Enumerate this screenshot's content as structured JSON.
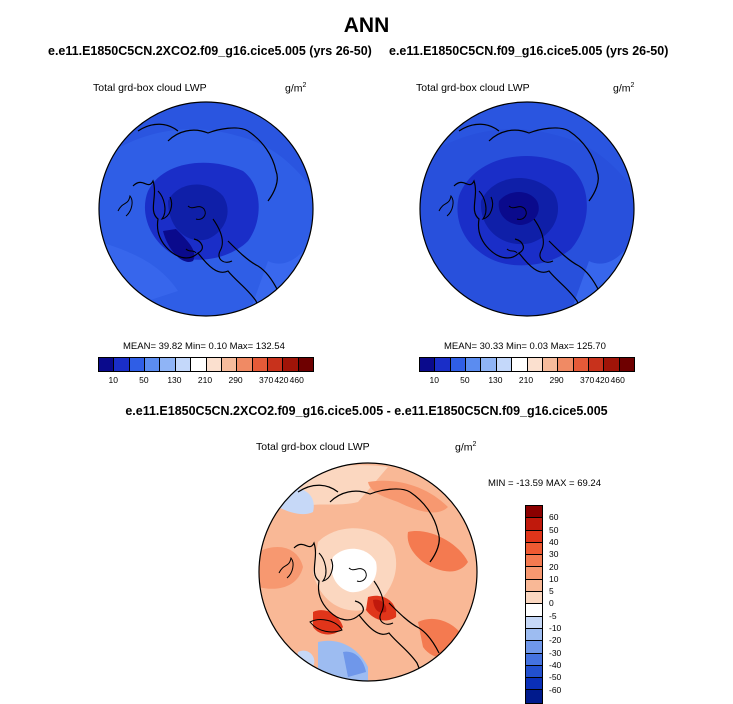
{
  "title": "ANN",
  "panels": [
    {
      "case": "e.e11.E1850C5CN.2XCO2.f09_g16.cice5.005 (yrs 26-50)",
      "variable": "Total grd-box cloud LWP",
      "units_base": "g/m",
      "units_exp": "2",
      "stats": "MEAN=  39.82  Min=   0.10  Max= 132.54"
    },
    {
      "case": "e.e11.E1850C5CN.f09_g16.cice5.005 (yrs 26-50)",
      "variable": "Total grd-box cloud LWP",
      "units_base": "g/m",
      "units_exp": "2",
      "stats": "MEAN=  30.33  Min=   0.03  Max= 125.70"
    }
  ],
  "diff": {
    "case": "e.e11.E1850C5CN.2XCO2.f09_g16.cice5.005 - e.e11.E1850C5CN.f09_g16.cice5.005",
    "variable": "Total grd-box cloud LWP",
    "units_base": "g/m",
    "units_exp": "2",
    "stats": "MIN = -13.59 MAX =  69.24"
  },
  "colorbar_abs": {
    "labels": [
      "10",
      "50",
      "130",
      "210",
      "290",
      "370",
      "420",
      "460"
    ],
    "colors": [
      "#0a0a8c",
      "#1a2ec8",
      "#2f5ee6",
      "#5b8cf0",
      "#8fb4f6",
      "#c4d8fa",
      "#ffffff",
      "#fbe0cf",
      "#f6bb9c",
      "#f08a64",
      "#e55a38",
      "#c8321c",
      "#a01408",
      "#6e0000"
    ]
  },
  "colorbar_diff": {
    "labels": [
      "60",
      "50",
      "40",
      "30",
      "20",
      "10",
      "5",
      "0",
      "-5",
      "-10",
      "-20",
      "-30",
      "-40",
      "-50",
      "-60"
    ],
    "colors": [
      "#8b0000",
      "#c0190c",
      "#e0351a",
      "#ef5a32",
      "#f47a50",
      "#f79870",
      "#f9b896",
      "#fbd7c0",
      "#ffffff",
      "#c6d8f7",
      "#9dbcf1",
      "#6f97ea",
      "#4472e0",
      "#2250cf",
      "#0a2fb8",
      "#001a8c"
    ]
  }
}
